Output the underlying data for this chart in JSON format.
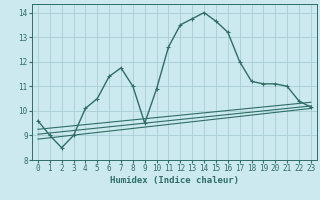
{
  "xlabel": "Humidex (Indice chaleur)",
  "bg_color": "#cce9ef",
  "grid_color": "#aacdd6",
  "line_color": "#2e6e65",
  "xlim": [
    -0.5,
    23.5
  ],
  "ylim": [
    8.0,
    14.35
  ],
  "yticks": [
    8,
    9,
    10,
    11,
    12,
    13,
    14
  ],
  "xticks": [
    0,
    1,
    2,
    3,
    4,
    5,
    6,
    7,
    8,
    9,
    10,
    11,
    12,
    13,
    14,
    15,
    16,
    17,
    18,
    19,
    20,
    21,
    22,
    23
  ],
  "series1_x": [
    0,
    1,
    2,
    3,
    4,
    5,
    6,
    7,
    8,
    9,
    10,
    11,
    12,
    13,
    14,
    15,
    16,
    17,
    18,
    19,
    20,
    21,
    22,
    23
  ],
  "series1_y": [
    9.6,
    9.0,
    8.5,
    9.0,
    10.1,
    10.5,
    11.4,
    11.75,
    11.0,
    9.5,
    10.9,
    12.6,
    13.5,
    13.75,
    14.0,
    13.65,
    13.2,
    12.0,
    11.2,
    11.1,
    11.1,
    11.0,
    10.4,
    10.15
  ],
  "series2_x": [
    0,
    23
  ],
  "series2_y": [
    8.85,
    10.1
  ],
  "series3_x": [
    0,
    23
  ],
  "series3_y": [
    9.05,
    10.2
  ],
  "series4_x": [
    0,
    23
  ],
  "series4_y": [
    9.25,
    10.35
  ]
}
